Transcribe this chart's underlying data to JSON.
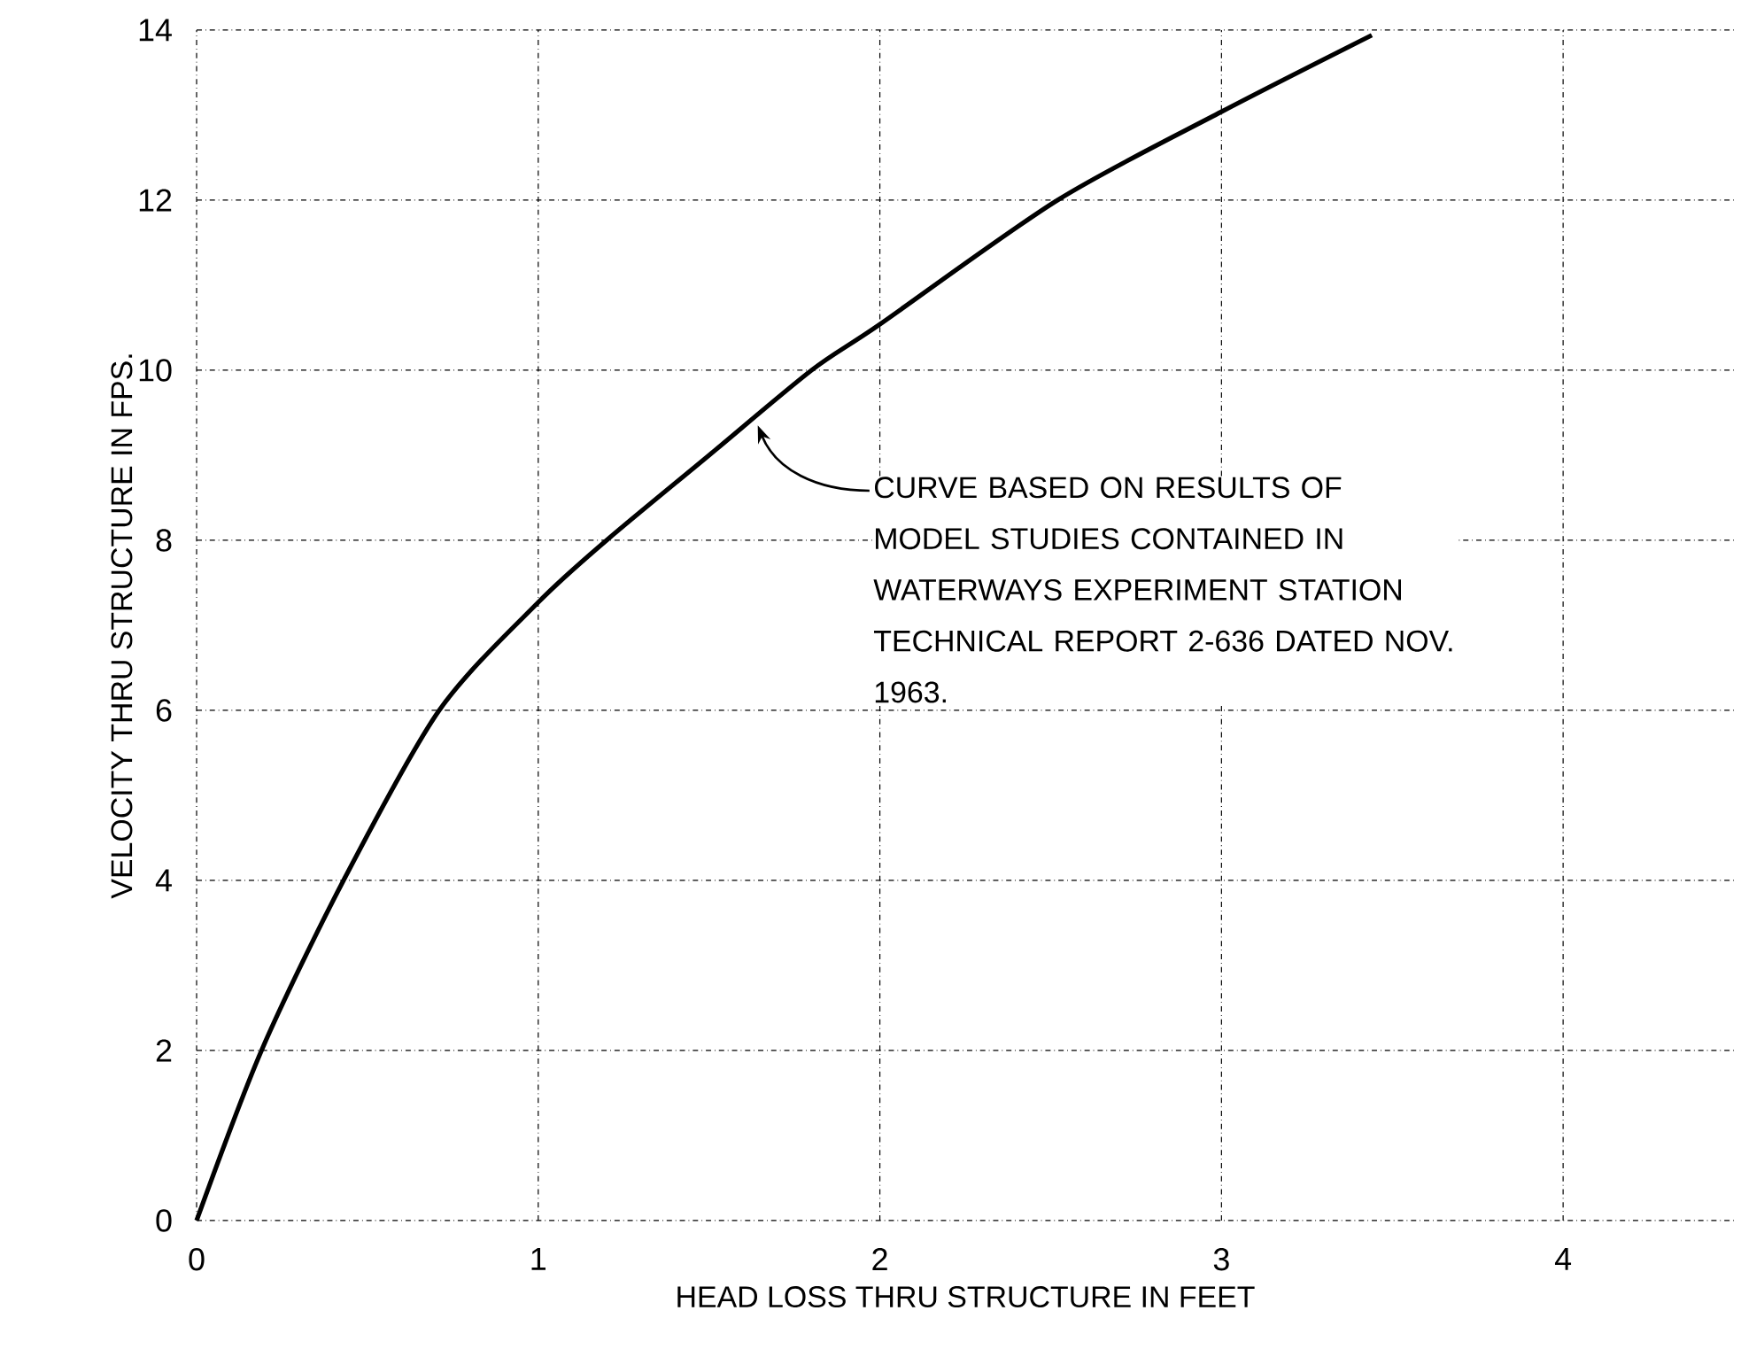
{
  "chart_data": {
    "type": "line",
    "xlabel": "HEAD LOSS THRU STRUCTURE IN FEET",
    "ylabel": "VELOCITY THRU STRUCTURE IN FPS.",
    "x": [
      0,
      0.19,
      0.43,
      0.71,
      1.0,
      1.2,
      1.5,
      1.8,
      2.0,
      2.52,
      3.0,
      3.44
    ],
    "series": [
      {
        "color": "#000000",
        "values": [
          0,
          2,
          4,
          6,
          7.27,
          8,
          9.0,
          10,
          10.54,
          12,
          13.04,
          13.94
        ]
      }
    ],
    "xlim": [
      0,
      4.5
    ],
    "ylim": [
      0,
      14
    ],
    "xticks": [
      0,
      1,
      2,
      3,
      4
    ],
    "yticks": [
      0,
      2,
      4,
      6,
      8,
      10,
      12,
      14
    ],
    "grid": true,
    "line_style": "solid",
    "marker": "none",
    "annotations": [
      "CURVE BASED ON RESULTS OF MODEL STUDIES CONTAINED IN WATERWAYS EXPERIMENT STATION TECHNICAL REPORT 2-636 DATED NOV. 1963."
    ]
  }
}
